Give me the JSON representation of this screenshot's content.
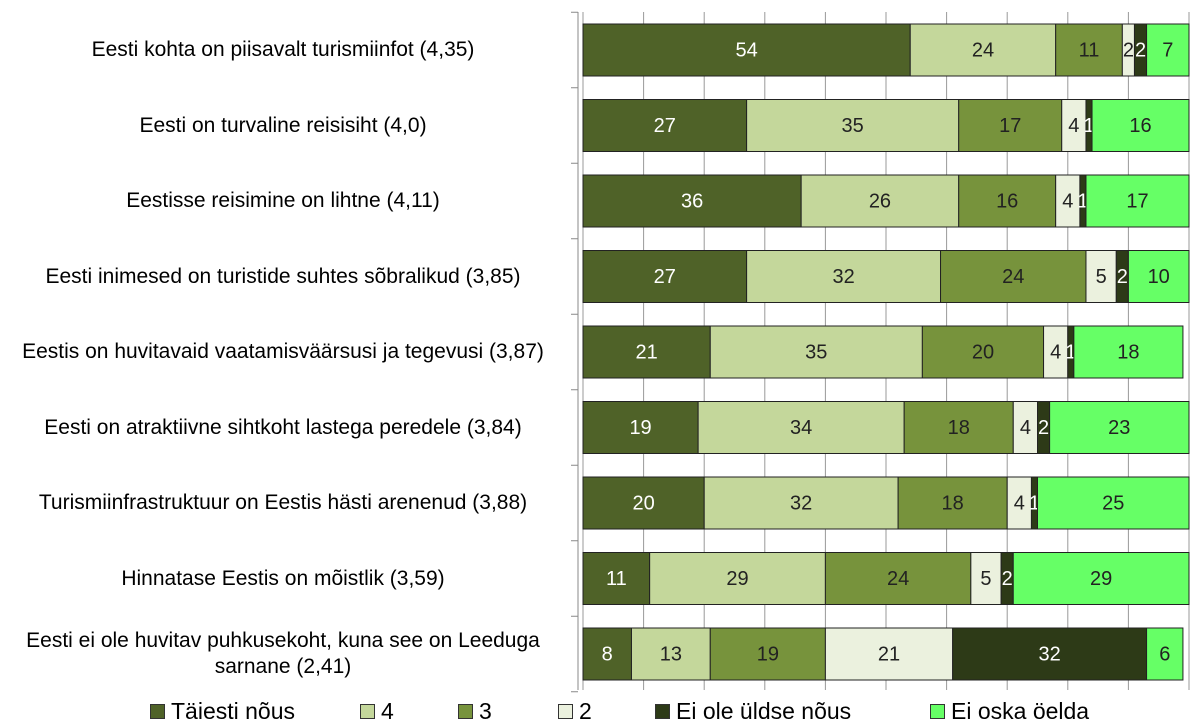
{
  "chart_data": {
    "type": "stacked_barh",
    "categories": [
      "Eesti kohta on piisavalt turismiinfot (4,35)",
      "Eesti on turvaline reisisiht (4,0)",
      "Eestisse reisimine on lihtne (4,11)",
      "Eesti inimesed on turistide suhtes sõbralikud (3,85)",
      "Eestis on huvitavaid vaatamisväärsusi ja tegevusi (3,87)",
      "Eesti on atraktiivne sihtkoht lastega peredele (3,84)",
      "Turismiinfrastruktuur on Eestis hästi arenenud (3,88)",
      "Hinnatase Eestis on mõistlik (3,59)",
      "Eesti ei ole huvitav puhkusekoht, kuna see on Leeduga sarnane (2,41)"
    ],
    "series": [
      {
        "name": "Täiesti nõus",
        "color": "#4f6228",
        "values": [
          54,
          27,
          36,
          27,
          21,
          19,
          20,
          11,
          8
        ]
      },
      {
        "name": "4",
        "color": "#c4d79b",
        "values": [
          24,
          35,
          26,
          32,
          35,
          34,
          32,
          29,
          13
        ]
      },
      {
        "name": "3",
        "color": "#77933c",
        "values": [
          11,
          17,
          16,
          24,
          20,
          18,
          18,
          24,
          19
        ]
      },
      {
        "name": "2",
        "color": "#ebf1de",
        "values": [
          2,
          4,
          4,
          5,
          4,
          4,
          4,
          5,
          21
        ]
      },
      {
        "name": "Ei ole üldse nõus",
        "color": "#2d3a17",
        "values": [
          2,
          1,
          1,
          2,
          1,
          2,
          1,
          2,
          32
        ]
      },
      {
        "name": "Ei oska öelda",
        "color": "#66ff66",
        "values": [
          7,
          16,
          17,
          10,
          18,
          23,
          25,
          29,
          6
        ]
      }
    ],
    "xlim": [
      0,
      100
    ],
    "xticks": [
      0,
      10,
      20,
      30,
      40,
      50,
      60,
      70,
      80,
      90,
      100
    ],
    "grid": true,
    "legend": "bottom"
  }
}
